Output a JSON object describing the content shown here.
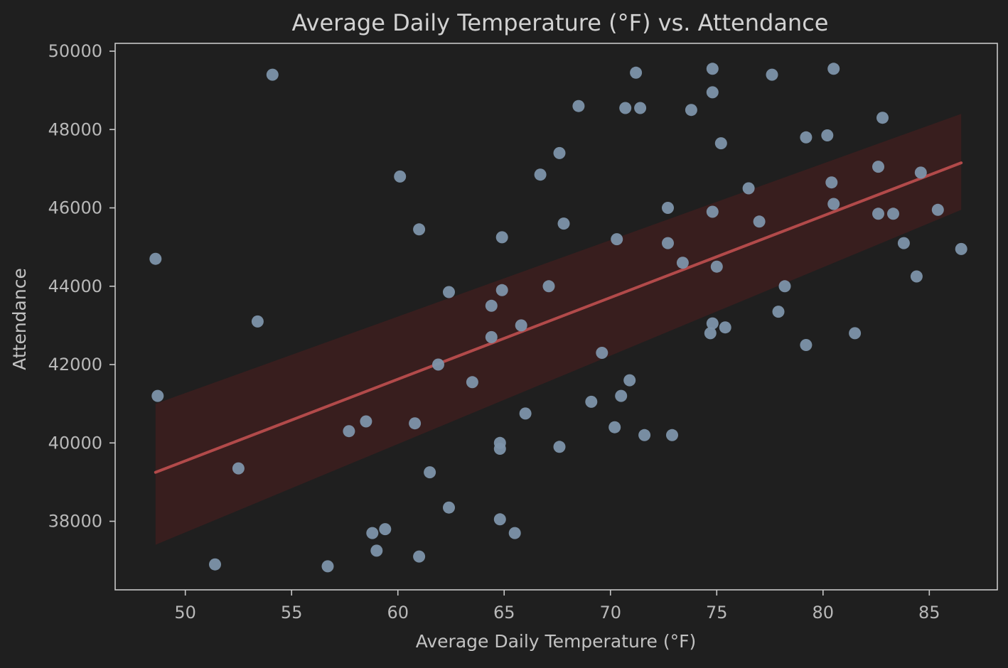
{
  "chart_data": {
    "type": "scatter",
    "title": "Average Daily Temperature (°F) vs. Attendance",
    "xlabel": "Average Daily Temperature (°F)",
    "ylabel": "Attendance",
    "xlim": [
      46.7,
      88.2
    ],
    "ylim": [
      36250,
      50200
    ],
    "xticks": [
      50,
      55,
      60,
      65,
      70,
      75,
      80,
      85
    ],
    "yticks": [
      38000,
      40000,
      42000,
      44000,
      46000,
      48000,
      50000
    ],
    "grid": false,
    "background": "#1f1f1f",
    "axes_color": "#c8c8c8",
    "point_color": "#7d94aa",
    "line_color": "#b24a4a",
    "band_color": "#3a1f1f",
    "regression": {
      "x_start": 48.6,
      "y_start": 39250,
      "x_end": 86.5,
      "y_end": 47150,
      "band_upper": [
        [
          48.6,
          41000
        ],
        [
          86.5,
          48400
        ]
      ],
      "band_lower": [
        [
          48.6,
          37400
        ],
        [
          86.5,
          45950
        ]
      ]
    },
    "points": [
      [
        48.6,
        44700
      ],
      [
        48.7,
        41200
      ],
      [
        51.4,
        36900
      ],
      [
        52.5,
        39350
      ],
      [
        53.4,
        43100
      ],
      [
        54.1,
        49400
      ],
      [
        56.7,
        36850
      ],
      [
        57.7,
        40300
      ],
      [
        58.5,
        40550
      ],
      [
        58.8,
        37700
      ],
      [
        59.0,
        37250
      ],
      [
        59.4,
        37800
      ],
      [
        60.1,
        46800
      ],
      [
        60.8,
        40500
      ],
      [
        61.0,
        45450
      ],
      [
        61.0,
        37100
      ],
      [
        61.5,
        39250
      ],
      [
        61.9,
        42000
      ],
      [
        62.4,
        43850
      ],
      [
        62.4,
        38350
      ],
      [
        63.5,
        41550
      ],
      [
        64.4,
        43500
      ],
      [
        64.4,
        42700
      ],
      [
        64.8,
        40000
      ],
      [
        64.8,
        39850
      ],
      [
        64.8,
        38050
      ],
      [
        64.9,
        45250
      ],
      [
        64.9,
        43900
      ],
      [
        65.5,
        37700
      ],
      [
        65.8,
        43000
      ],
      [
        66.0,
        40750
      ],
      [
        66.7,
        46850
      ],
      [
        67.1,
        44000
      ],
      [
        67.6,
        47400
      ],
      [
        67.6,
        39900
      ],
      [
        67.8,
        45600
      ],
      [
        68.5,
        48600
      ],
      [
        69.1,
        41050
      ],
      [
        69.6,
        42300
      ],
      [
        70.2,
        40400
      ],
      [
        70.3,
        45200
      ],
      [
        70.5,
        41200
      ],
      [
        70.7,
        48550
      ],
      [
        70.9,
        41600
      ],
      [
        71.2,
        49450
      ],
      [
        71.4,
        48550
      ],
      [
        71.6,
        40200
      ],
      [
        72.7,
        46000
      ],
      [
        72.7,
        45100
      ],
      [
        72.9,
        40200
      ],
      [
        73.4,
        44600
      ],
      [
        73.8,
        48500
      ],
      [
        74.7,
        42800
      ],
      [
        74.8,
        49550
      ],
      [
        74.8,
        48950
      ],
      [
        74.8,
        45900
      ],
      [
        74.8,
        43050
      ],
      [
        75.0,
        44500
      ],
      [
        75.2,
        47650
      ],
      [
        75.4,
        42950
      ],
      [
        76.5,
        46500
      ],
      [
        77.0,
        45650
      ],
      [
        77.6,
        49400
      ],
      [
        77.9,
        43350
      ],
      [
        78.2,
        44000
      ],
      [
        79.2,
        47800
      ],
      [
        79.2,
        42500
      ],
      [
        80.2,
        47850
      ],
      [
        80.4,
        46650
      ],
      [
        80.5,
        49550
      ],
      [
        80.5,
        46100
      ],
      [
        81.5,
        42800
      ],
      [
        82.6,
        47050
      ],
      [
        82.6,
        45850
      ],
      [
        82.8,
        48300
      ],
      [
        83.3,
        45850
      ],
      [
        83.8,
        45100
      ],
      [
        84.4,
        44250
      ],
      [
        84.6,
        46900
      ],
      [
        85.4,
        45950
      ],
      [
        86.5,
        44950
      ]
    ]
  }
}
